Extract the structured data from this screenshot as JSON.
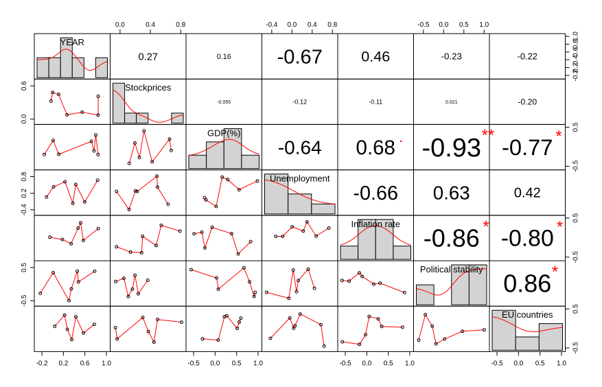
{
  "chart_data": {
    "type": "scatter-matrix",
    "variables": [
      "YEAR",
      "Stockprices",
      "GDP(%)",
      "Unemployment",
      "Inflation rate",
      "Political stability",
      "EU countries"
    ],
    "top_ticks": {
      "1": [
        "0.0",
        "0.4",
        "0.8"
      ],
      "3": [
        "-0.4",
        "0.0",
        "0.4",
        "0.8"
      ],
      "5": [
        "-0.5",
        "0.0",
        "0.5",
        "1.0"
      ]
    },
    "bottom_ticks": {
      "0": [
        "-0.2",
        "0.2",
        "0.6",
        "1.0"
      ],
      "2": [
        "-0.5",
        "0.0",
        "0.5",
        "1.0"
      ],
      "4": [
        "-0.5",
        "0.0",
        "0.5",
        "1.0"
      ],
      "6": [
        "-0.5",
        "0.0",
        "0.5",
        "1.0"
      ]
    },
    "left_ticks": {
      "1": [
        "0.0",
        "0.6"
      ],
      "3": [
        "-0.4",
        "0.2",
        "0.8"
      ],
      "5": [
        "-0.5",
        "0.5"
      ]
    },
    "right_ticks": {
      "0": [
        "-0.2",
        "0.2",
        "0.4",
        "0.6",
        "0.8",
        "1.0"
      ],
      "2": [
        "-0.5",
        "0.5"
      ],
      "4": [
        "-0.5",
        "0.5"
      ],
      "6": [
        "-0.5",
        "0.5"
      ]
    },
    "correlations": [
      {
        "row": 0,
        "col": 1,
        "label": "0.27",
        "stars": ""
      },
      {
        "row": 0,
        "col": 2,
        "label": "0.16",
        "stars": ""
      },
      {
        "row": 0,
        "col": 3,
        "label": "-0.67",
        "stars": ""
      },
      {
        "row": 0,
        "col": 4,
        "label": "0.46",
        "stars": ""
      },
      {
        "row": 0,
        "col": 5,
        "label": "-0.23",
        "stars": ""
      },
      {
        "row": 0,
        "col": 6,
        "label": "-0.22",
        "stars": ""
      },
      {
        "row": 1,
        "col": 2,
        "label": "-0.055",
        "stars": ""
      },
      {
        "row": 1,
        "col": 3,
        "label": "-0.12",
        "stars": ""
      },
      {
        "row": 1,
        "col": 4,
        "label": "-0.11",
        "stars": ""
      },
      {
        "row": 1,
        "col": 5,
        "label": "0.021",
        "stars": ""
      },
      {
        "row": 1,
        "col": 6,
        "label": "-0.20",
        "stars": ""
      },
      {
        "row": 2,
        "col": 3,
        "label": "-0.64",
        "stars": ""
      },
      {
        "row": 2,
        "col": 4,
        "label": "0.68",
        "stars": "."
      },
      {
        "row": 2,
        "col": 5,
        "label": "-0.93",
        "stars": "**"
      },
      {
        "row": 2,
        "col": 6,
        "label": "-0.77",
        "stars": "*"
      },
      {
        "row": 3,
        "col": 4,
        "label": "-0.66",
        "stars": ""
      },
      {
        "row": 3,
        "col": 5,
        "label": "0.63",
        "stars": ""
      },
      {
        "row": 3,
        "col": 6,
        "label": "0.42",
        "stars": ""
      },
      {
        "row": 4,
        "col": 5,
        "label": "-0.86",
        "stars": "*"
      },
      {
        "row": 4,
        "col": 6,
        "label": "-0.80",
        "stars": "*"
      },
      {
        "row": 5,
        "col": 6,
        "label": "0.86",
        "stars": "*"
      }
    ],
    "histograms": [
      {
        "var": 0,
        "counts": [
          1,
          1,
          2,
          1,
          0,
          1
        ]
      },
      {
        "var": 1,
        "counts": [
          4,
          1,
          1,
          0,
          0,
          1
        ]
      },
      {
        "var": 2,
        "counts": [
          1,
          2,
          3,
          1
        ]
      },
      {
        "var": 3,
        "counts": [
          4,
          2,
          1
        ]
      },
      {
        "var": 4,
        "counts": [
          1,
          3,
          3,
          1
        ]
      },
      {
        "var": 5,
        "counts": [
          1,
          0,
          2,
          2
        ]
      },
      {
        "var": 6,
        "counts": [
          3,
          1,
          2
        ]
      }
    ]
  }
}
